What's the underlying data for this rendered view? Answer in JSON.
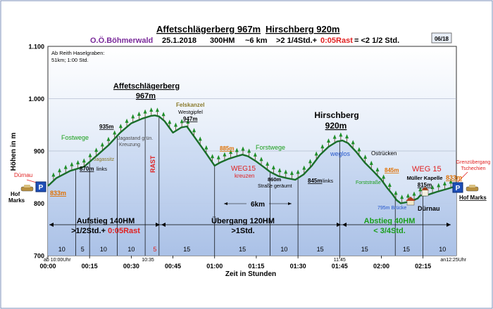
{
  "header": {
    "title1": "Affetschlägerberg 967m",
    "title2": "Hirschberg 920m",
    "org": "O.Ö.Böhmerwald",
    "date": "25.1.2018",
    "hm": "300HM",
    "dist": "~6 km",
    "time": ">2 1/4Std.+",
    "rest": "0:05Rast",
    "total": "= <2 1/2 Std.",
    "page": "06/18"
  },
  "colors": {
    "profile": "#1a6e2a",
    "ground": "#bcd0ec",
    "plot_bg_top": "#ffffff",
    "plot_bg_bottom": "#c9d9f2",
    "green": "#1a9e1a",
    "red": "#e02020",
    "orange": "#e07000",
    "blue": "#2255cc",
    "olive": "#8a7a2a"
  },
  "chart_data": {
    "type": "area",
    "title": "Affetschlägerberg 967m  Hirschberg 920m",
    "xlabel": "Zeit in Stunden",
    "ylabel": "Höhen in m",
    "xlim": [
      0,
      147
    ],
    "ylim": [
      700,
      1100
    ],
    "ytick_labels": [
      "1.100",
      "1.000",
      "900",
      "800",
      "700"
    ],
    "ytick_values": [
      1100,
      1000,
      900,
      800,
      700
    ],
    "xtick_labels": [
      "00:00",
      "00:15",
      "00:30",
      "00:45",
      "01:00",
      "01:15",
      "01:30",
      "01:45",
      "02:00",
      "02:15"
    ],
    "xtick_values": [
      0,
      15,
      30,
      45,
      60,
      75,
      90,
      105,
      120,
      135
    ],
    "profile": {
      "x": [
        0,
        3,
        8,
        13,
        18,
        22,
        26,
        30,
        34,
        37,
        38.5,
        40,
        42,
        45,
        48,
        50,
        53,
        57,
        60,
        62,
        65,
        68,
        70,
        72,
        75,
        78,
        80,
        83,
        86,
        89,
        92,
        95,
        98,
        101,
        104,
        106,
        108,
        111,
        114,
        117,
        120,
        122,
        124,
        125.5,
        127,
        129,
        131,
        133,
        134,
        136,
        140,
        144,
        147
      ],
      "y": [
        833,
        848,
        862,
        870,
        893,
        912,
        935,
        953,
        962,
        967,
        968,
        966,
        957,
        935,
        945,
        947,
        925,
        895,
        872,
        878,
        885,
        890,
        893,
        890,
        880,
        868,
        860,
        852,
        848,
        845,
        855,
        872,
        893,
        908,
        918,
        920,
        915,
        898,
        878,
        862,
        845,
        830,
        817,
        806,
        800,
        802,
        805,
        809,
        815,
        815,
        822,
        828,
        833
      ]
    },
    "series_label": "Höhenprofil",
    "segment_durations": [
      {
        "x": 5,
        "label": "10"
      },
      {
        "x": 12.5,
        "label": "5"
      },
      {
        "x": 20,
        "label": "10"
      },
      {
        "x": 30,
        "label": "10"
      },
      {
        "x": 38.5,
        "label": "5"
      },
      {
        "x": 50,
        "label": "15"
      },
      {
        "x": 70,
        "label": "15"
      },
      {
        "x": 85,
        "label": "10"
      },
      {
        "x": 98,
        "label": "15"
      },
      {
        "x": 114,
        "label": "15"
      },
      {
        "x": 129,
        "label": "15"
      },
      {
        "x": 142,
        "label": "10"
      }
    ],
    "segment_dividers": [
      0,
      10,
      15,
      25,
      35,
      40,
      60,
      80,
      90,
      105,
      125,
      135
    ],
    "time_marks": [
      {
        "x": 0,
        "label": "ab 10:00Uhr"
      },
      {
        "x": 36,
        "label": "10:35"
      },
      {
        "x": 105,
        "label": "11:45"
      },
      {
        "x": 146,
        "label": "an12:25Uhr"
      }
    ],
    "annotations": {
      "ab_reith": "Ab Reith Haselgraben:",
      "ab_reith2": "51km; 1:00 Std.",
      "duernau_l": "Dürnau",
      "hof_marks_l1": "Hof",
      "hof_marks_l2": "Marks",
      "elev_833_l": "833m",
      "fostwege": "Fostwege",
      "jagassitz": "Jagassitz",
      "e870": "870m",
      "links": "links",
      "e935": "935m",
      "jagdstand": "Jagastand grün.",
      "kreuzung": "Kreuzung",
      "affet_title": "Affetschlägerberg",
      "affet_elev": "967m",
      "rast": "RAST",
      "felskanzel": "Felskanzel",
      "westgipfel": "Westgipfel",
      "e947": "947m",
      "e885": "885m",
      "forstwege": "Forstwege",
      "weg15_a": "WEG15",
      "kreuzen": "kreuzen",
      "e860": "860m",
      "strasse": "Straße geräumt",
      "e845a": "845m",
      "links2": "links",
      "hirsch_title": "Hirschberg",
      "hirsch_elev": "920m",
      "weglos": "weglos",
      "ostruecken": "Ostrücken",
      "forststrasse": "Forststraße",
      "e845b": "845m",
      "weg15_b": "WEG 15",
      "mueller": "Müller Kapelle",
      "e815": "815m",
      "e795": "795m Brücke",
      "duernau_r": "Dürnau",
      "grenz1": "Grenzübergang",
      "grenz2": "Tschechien",
      "e833_r": "833m",
      "hof_marks_r": "Hof Marks",
      "km6": "6km",
      "parking": "P"
    },
    "sections": [
      {
        "label1": "Aufstieg 140HM",
        "label2a": ">1/2Std.+ ",
        "label2b": "0:05Rast",
        "x0": 0,
        "x1": 40
      },
      {
        "label1": "Übergang 120HM",
        "label2a": ">1Std.",
        "label2b": "",
        "x0": 40,
        "x1": 105
      },
      {
        "label1": "Abstieg 40HM",
        "label2a": "< 3/4Std.",
        "label2b": "",
        "x0": 105,
        "x1": 147
      }
    ]
  }
}
